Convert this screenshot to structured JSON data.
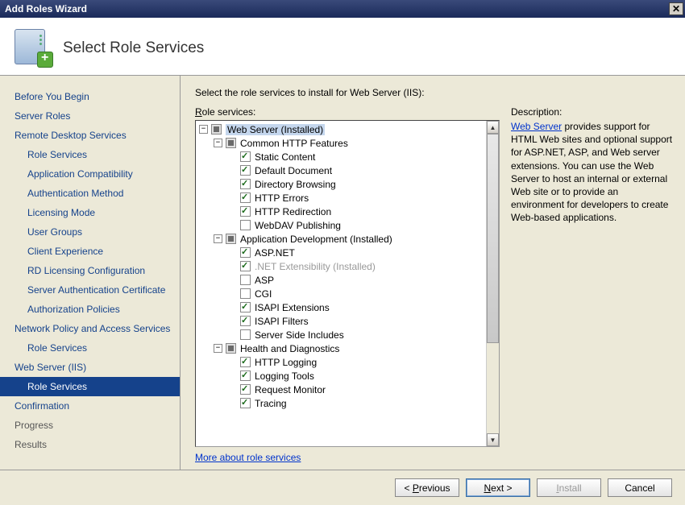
{
  "titlebar": {
    "title": "Add Roles Wizard"
  },
  "header": {
    "title": "Select Role Services"
  },
  "nav": [
    {
      "label": "Before You Begin",
      "indent": 0,
      "sel": 0,
      "gray": 0
    },
    {
      "label": "Server Roles",
      "indent": 0,
      "sel": 0,
      "gray": 0
    },
    {
      "label": "Remote Desktop Services",
      "indent": 0,
      "sel": 0,
      "gray": 0
    },
    {
      "label": "Role Services",
      "indent": 1,
      "sel": 0,
      "gray": 0
    },
    {
      "label": "Application Compatibility",
      "indent": 1,
      "sel": 0,
      "gray": 0
    },
    {
      "label": "Authentication Method",
      "indent": 1,
      "sel": 0,
      "gray": 0
    },
    {
      "label": "Licensing Mode",
      "indent": 1,
      "sel": 0,
      "gray": 0
    },
    {
      "label": "User Groups",
      "indent": 1,
      "sel": 0,
      "gray": 0
    },
    {
      "label": "Client Experience",
      "indent": 1,
      "sel": 0,
      "gray": 0
    },
    {
      "label": "RD Licensing Configuration",
      "indent": 1,
      "sel": 0,
      "gray": 0
    },
    {
      "label": "Server Authentication Certificate",
      "indent": 1,
      "sel": 0,
      "gray": 0
    },
    {
      "label": "Authorization Policies",
      "indent": 1,
      "sel": 0,
      "gray": 0
    },
    {
      "label": "Network Policy and Access Services",
      "indent": 0,
      "sel": 0,
      "gray": 0
    },
    {
      "label": "Role Services",
      "indent": 1,
      "sel": 0,
      "gray": 0
    },
    {
      "label": "Web Server (IIS)",
      "indent": 0,
      "sel": 0,
      "gray": 0
    },
    {
      "label": "Role Services",
      "indent": 1,
      "sel": 1,
      "gray": 0
    },
    {
      "label": "Confirmation",
      "indent": 0,
      "sel": 0,
      "gray": 0
    },
    {
      "label": "Progress",
      "indent": 0,
      "sel": 0,
      "gray": 1
    },
    {
      "label": "Results",
      "indent": 0,
      "sel": 0,
      "gray": 1
    }
  ],
  "main": {
    "instruction": "Select the role services to install for Web Server (IIS):",
    "roleLabel": "Role services:",
    "descLabel": "Description:",
    "descLink": "Web Server",
    "descText": " provides support for HTML Web sites and optional support for ASP.NET, ASP, and Web server extensions. You can use the Web Server to host an internal or external Web site or to provide an environment for developers to create Web-based applications.",
    "moreLink": "More about role services"
  },
  "tree": [
    {
      "d": 0,
      "t": "-",
      "c": "partial",
      "label": "Web Server  (Installed)",
      "sel": 1
    },
    {
      "d": 1,
      "t": "-",
      "c": "partial",
      "label": "Common HTTP Features"
    },
    {
      "d": 2,
      "t": "",
      "c": "checked",
      "label": "Static Content"
    },
    {
      "d": 2,
      "t": "",
      "c": "checked",
      "label": "Default Document"
    },
    {
      "d": 2,
      "t": "",
      "c": "checked",
      "label": "Directory Browsing"
    },
    {
      "d": 2,
      "t": "",
      "c": "checked",
      "label": "HTTP Errors"
    },
    {
      "d": 2,
      "t": "",
      "c": "checked",
      "label": "HTTP Redirection"
    },
    {
      "d": 2,
      "t": "",
      "c": "",
      "label": "WebDAV Publishing"
    },
    {
      "d": 1,
      "t": "-",
      "c": "partial",
      "label": "Application Development  (Installed)"
    },
    {
      "d": 2,
      "t": "",
      "c": "checked",
      "label": "ASP.NET"
    },
    {
      "d": 2,
      "t": "",
      "c": "checked",
      "label": ".NET Extensibility  (Installed)",
      "dis": 1
    },
    {
      "d": 2,
      "t": "",
      "c": "",
      "label": "ASP"
    },
    {
      "d": 2,
      "t": "",
      "c": "",
      "label": "CGI"
    },
    {
      "d": 2,
      "t": "",
      "c": "checked",
      "label": "ISAPI Extensions"
    },
    {
      "d": 2,
      "t": "",
      "c": "checked",
      "label": "ISAPI Filters"
    },
    {
      "d": 2,
      "t": "",
      "c": "",
      "label": "Server Side Includes"
    },
    {
      "d": 1,
      "t": "-",
      "c": "partial",
      "label": "Health and Diagnostics"
    },
    {
      "d": 2,
      "t": "",
      "c": "checked",
      "label": "HTTP Logging"
    },
    {
      "d": 2,
      "t": "",
      "c": "checked",
      "label": "Logging Tools"
    },
    {
      "d": 2,
      "t": "",
      "c": "checked",
      "label": "Request Monitor"
    },
    {
      "d": 2,
      "t": "",
      "c": "checked",
      "label": "Tracing"
    }
  ],
  "buttons": {
    "prev": "< Previous",
    "next": "Next >",
    "install": "Install",
    "cancel": "Cancel"
  },
  "style": {
    "indentPx": 18,
    "basePad": 4,
    "colors": {
      "navSelectedBg": "#15428b",
      "navText": "#15428b",
      "link": "#0033cc",
      "treeSelBg": "#c4d6ed",
      "bodyBg": "#ece9d8"
    }
  }
}
